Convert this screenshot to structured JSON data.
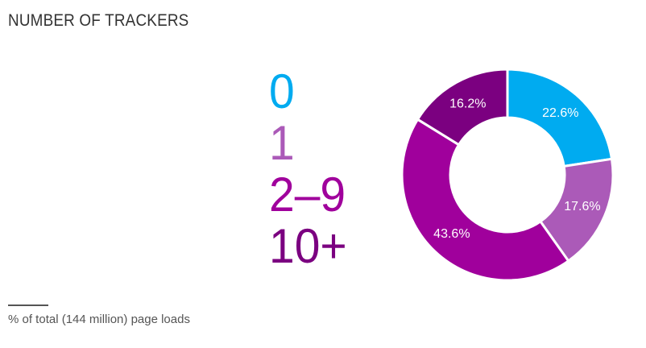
{
  "title": "NUMBER OF TRACKERS",
  "note": "% of total (144 million) page loads",
  "chart_data": {
    "type": "pie",
    "title": "NUMBER OF TRACKERS",
    "categories": [
      "0",
      "1",
      "2–9",
      "10+"
    ],
    "values": [
      22.6,
      17.6,
      43.6,
      16.2
    ],
    "labels": [
      "22.6%",
      "17.6%",
      "43.6%",
      "16.2%"
    ],
    "colors": [
      "#00abf0",
      "#ab5ab8",
      "#a0009c",
      "#7b0080"
    ],
    "donut": true,
    "legend_position": "left"
  }
}
